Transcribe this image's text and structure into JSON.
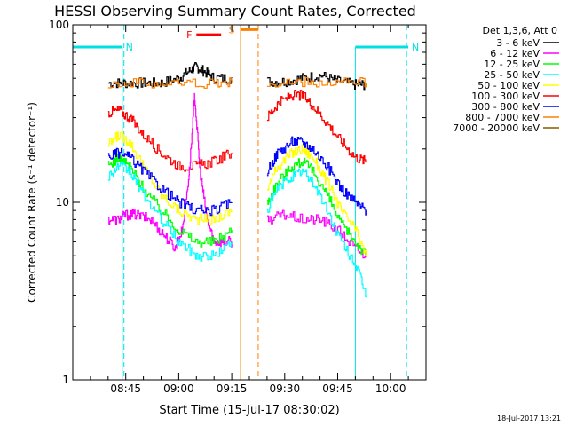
{
  "chart_data": {
    "type": "line",
    "title": "HESSI Observing Summary Count Rates, Corrected",
    "xlabel": "Start Time (15-Jul-17 08:30:02)",
    "ylabel": "Corrected Count Rate (s⁻¹ detector⁻¹)",
    "yscale": "log",
    "ylim": [
      1,
      100
    ],
    "xlim_minutes": [
      0,
      100
    ],
    "x_tick_labels": [
      "08:45",
      "09:00",
      "09:15",
      "09:30",
      "09:45",
      "10:00"
    ],
    "x_tick_minutes": [
      15,
      30,
      45,
      60,
      75,
      90
    ],
    "y_tick_labels": [
      "1",
      "10",
      "100"
    ],
    "y_tick_values": [
      1,
      10,
      100
    ],
    "legend_header": "Det 1,3,6, Att 0",
    "legend_position": "right",
    "timestamp": "18-Jul-2017 13:21",
    "annotations": [
      {
        "label": "N",
        "color": "#00e0e0",
        "start": -5,
        "end": 14,
        "level": 75,
        "dashed_at": 14.5
      },
      {
        "label": "N",
        "color": "#00e0e0",
        "start": 80,
        "end": 95,
        "level": 75,
        "dashed_at": 94.5
      },
      {
        "label": "F",
        "color": "#ff0000",
        "start": 35,
        "end": 42,
        "level": 88
      },
      {
        "label": "S",
        "color": "#ff8000",
        "start": 47.5,
        "end": 52.5,
        "level": 94,
        "solid_at": 47.5,
        "dashed_at": 52.5
      }
    ],
    "series": [
      {
        "name": "3 - 6 keV",
        "color": "#000000",
        "x": [
          10,
          15,
          20,
          25,
          30,
          33,
          35,
          37,
          40,
          45,
          55,
          60,
          65,
          70,
          75,
          80,
          83
        ],
        "values": [
          47,
          47,
          47,
          47,
          50,
          55,
          58,
          55,
          50,
          50,
          48,
          48,
          50,
          52,
          48,
          46,
          46
        ]
      },
      {
        "name": "6 - 12 keV",
        "color": "#ff00ff",
        "x": [
          10,
          13,
          15,
          18,
          22,
          26,
          29,
          31,
          33,
          34.5,
          36,
          38,
          40,
          42,
          45,
          55,
          60,
          65,
          70,
          75,
          80,
          83
        ],
        "values": [
          8,
          8,
          8.5,
          8.5,
          8,
          6.5,
          5.5,
          7,
          15,
          40,
          15,
          8,
          6,
          6,
          6,
          8,
          8.5,
          8,
          8,
          7,
          5.5,
          5
        ]
      },
      {
        "name": "12 - 25 keV",
        "color": "#00ff00",
        "x": [
          10,
          13,
          16,
          20,
          25,
          30,
          35,
          40,
          45,
          55,
          58,
          62,
          65,
          68,
          72,
          76,
          80,
          83
        ],
        "values": [
          16,
          18,
          16,
          12,
          9,
          7,
          6,
          6,
          7,
          10,
          13,
          16,
          17,
          15,
          11,
          7.5,
          6,
          5
        ]
      },
      {
        "name": "25 - 50 keV",
        "color": "#00ffff",
        "x": [
          10,
          13,
          16,
          20,
          25,
          30,
          35,
          40,
          45,
          55,
          58,
          62,
          65,
          68,
          72,
          76,
          80,
          83
        ],
        "values": [
          14,
          16,
          15,
          11,
          8,
          6,
          5,
          5,
          6,
          9,
          12,
          14,
          15,
          13,
          9,
          6,
          4.5,
          3
        ]
      },
      {
        "name": "50 - 100 keV",
        "color": "#ffff00",
        "x": [
          10,
          13,
          16,
          20,
          25,
          30,
          35,
          40,
          45,
          55,
          58,
          62,
          65,
          68,
          72,
          76,
          80,
          83
        ],
        "values": [
          21,
          24,
          22,
          16,
          11,
          9,
          8,
          8,
          9,
          12,
          16,
          19,
          20,
          18,
          13,
          9,
          7,
          5
        ]
      },
      {
        "name": "100 - 300 keV",
        "color": "#ff0000",
        "x": [
          10,
          13,
          16,
          20,
          25,
          30,
          35,
          40,
          45,
          55,
          58,
          62,
          65,
          68,
          72,
          76,
          80,
          83
        ],
        "values": [
          32,
          33,
          30,
          24,
          19,
          16,
          16,
          17,
          19,
          30,
          36,
          40,
          40,
          35,
          28,
          22,
          18,
          17
        ]
      },
      {
        "name": "300 - 800 keV",
        "color": "#0000ff",
        "x": [
          10,
          13,
          16,
          20,
          25,
          30,
          35,
          40,
          45,
          55,
          58,
          62,
          65,
          68,
          72,
          76,
          80,
          83
        ],
        "values": [
          18,
          19,
          18,
          15,
          12,
          10,
          9,
          9,
          10,
          15,
          19,
          22,
          22,
          20,
          16,
          12,
          10,
          9
        ]
      },
      {
        "name": "800 - 7000 keV",
        "color": "#ff8000",
        "x": [
          10,
          20,
          30,
          40,
          45,
          55,
          65,
          75,
          83
        ],
        "values": [
          47,
          47,
          47,
          47,
          47,
          47,
          47,
          47,
          47
        ]
      },
      {
        "name": "7000 - 20000 keV",
        "color": "#8b5a00",
        "x": [],
        "values": []
      }
    ]
  }
}
